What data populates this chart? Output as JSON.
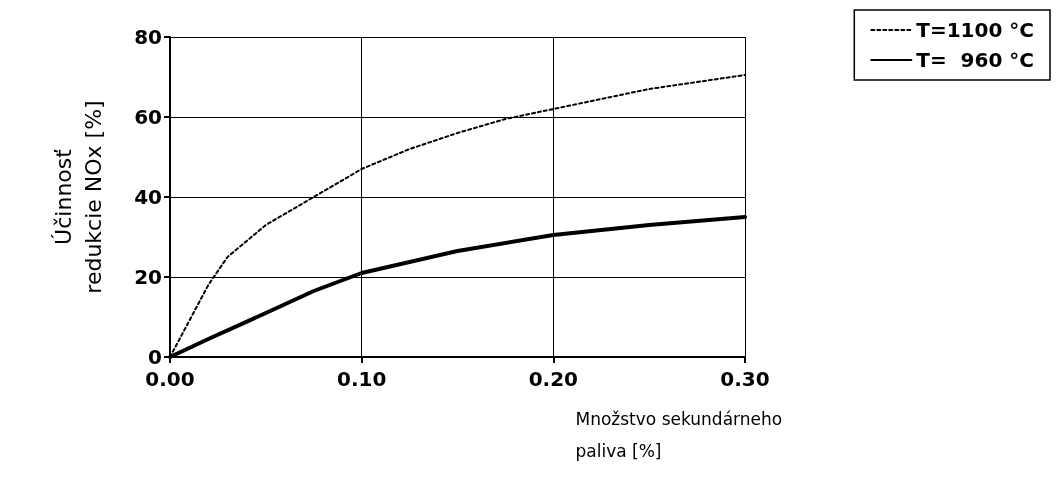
{
  "chart_data": {
    "type": "line",
    "xlabel": "Množstvo sekundárneho\npaliva [%]",
    "ylabel": "Účinnosť\nredukcie NOx [%]",
    "xlim": [
      0,
      0.3
    ],
    "xticks": [
      {
        "value": 0,
        "label": "0.00"
      },
      {
        "value": 0.1,
        "label": "0.10"
      },
      {
        "value": 0.2,
        "label": "0.20"
      },
      {
        "value": 0.3,
        "label": "0.30"
      }
    ],
    "ylim": [
      0,
      80
    ],
    "yticks": [
      0,
      20,
      40,
      60,
      80
    ],
    "grid": true,
    "legend": "top right",
    "marker": "none",
    "series": [
      {
        "name": "T=1100 °C",
        "color": "#000000",
        "line_style": "dotted",
        "x": [
          0,
          0.01,
          0.02,
          0.03,
          0.05,
          0.075,
          0.1,
          0.125,
          0.15,
          0.175,
          0.2,
          0.25,
          0.3
        ],
        "values": [
          0,
          9,
          18,
          25,
          33,
          40,
          47,
          52,
          56,
          59.5,
          62,
          67,
          70.5
        ]
      },
      {
        "name": "T=  960 °C",
        "color": "#000000",
        "line_style": "solid",
        "x": [
          0,
          0.02,
          0.05,
          0.075,
          0.1,
          0.15,
          0.2,
          0.25,
          0.3
        ],
        "values": [
          0,
          4.5,
          11,
          16.5,
          21,
          26.5,
          30.5,
          33,
          35
        ]
      }
    ]
  }
}
